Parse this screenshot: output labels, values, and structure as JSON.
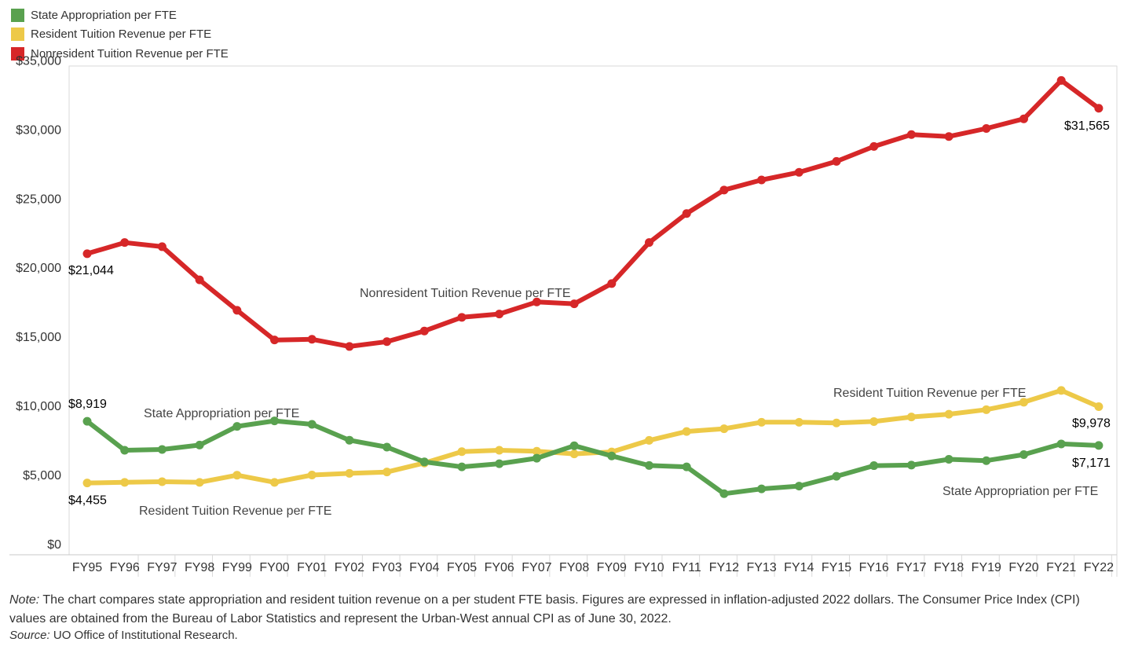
{
  "legend": [
    {
      "label": "State Appropriation per FTE",
      "color": "#59a14f"
    },
    {
      "label": "Resident Tuition Revenue per FTE",
      "color": "#edc948"
    },
    {
      "label": "Nonresident Tuition Revenue per FTE",
      "color": "#d62728"
    }
  ],
  "note": {
    "label": "Note:",
    "text": " The chart compares state appropriation and resident tuition revenue on a per student FTE basis. Figures are expressed in inflation-adjusted 2022 dollars. The Consumer Price Index (CPI) values are obtained from the Bureau of Labor Statistics and represent the Urban-West annual CPI as of June 30, 2022."
  },
  "source": {
    "label": "Source:",
    "text": " UO Office of Institutional Research."
  },
  "chart_data": {
    "type": "line",
    "categories": [
      "FY95",
      "FY96",
      "FY97",
      "FY98",
      "FY99",
      "FY00",
      "FY01",
      "FY02",
      "FY03",
      "FY04",
      "FY05",
      "FY06",
      "FY07",
      "FY08",
      "FY09",
      "FY10",
      "FY11",
      "FY12",
      "FY13",
      "FY14",
      "FY15",
      "FY16",
      "FY17",
      "FY18",
      "FY19",
      "FY20",
      "FY21",
      "FY22"
    ],
    "ylim": [
      0,
      35000
    ],
    "yticks": [
      0,
      5000,
      10000,
      15000,
      20000,
      25000,
      30000,
      35000
    ],
    "ytick_labels": [
      "$0",
      "$5,000",
      "$10,000",
      "$15,000",
      "$20,000",
      "$25,000",
      "$30,000",
      "$35,000"
    ],
    "grid": false,
    "legend_position": "top-left",
    "series": [
      {
        "name": "Nonresident Tuition Revenue per FTE",
        "color": "#d62728",
        "values": [
          21044,
          21850,
          21550,
          19150,
          16950,
          14800,
          14850,
          14330,
          14680,
          15450,
          16440,
          16680,
          17550,
          17420,
          18880,
          21850,
          23950,
          25650,
          26380,
          26930,
          27720,
          28800,
          29660,
          29520,
          30100,
          30800,
          33580,
          31565
        ]
      },
      {
        "name": "Resident Tuition Revenue per FTE",
        "color": "#edc948",
        "values": [
          4455,
          4500,
          4550,
          4500,
          5020,
          4500,
          5030,
          5150,
          5250,
          5900,
          6720,
          6820,
          6750,
          6560,
          6700,
          7540,
          8180,
          8380,
          8850,
          8850,
          8800,
          8900,
          9230,
          9430,
          9760,
          10300,
          11150,
          9978
        ]
      },
      {
        "name": "State Appropriation per FTE",
        "color": "#59a14f",
        "values": [
          8919,
          6820,
          6880,
          7200,
          8550,
          8950,
          8700,
          7550,
          7050,
          5980,
          5620,
          5850,
          6250,
          7150,
          6410,
          5720,
          5620,
          3680,
          4030,
          4230,
          4940,
          5710,
          5750,
          6170,
          6070,
          6510,
          7280,
          7171
        ]
      }
    ],
    "annotations": [
      {
        "text": "$21,044",
        "series": 0,
        "point": 0
      },
      {
        "text": "$31,565",
        "series": 0,
        "point": 27
      },
      {
        "text": "$4,455",
        "series": 1,
        "point": 0
      },
      {
        "text": "$9,978",
        "series": 1,
        "point": 27
      },
      {
        "text": "$8,919",
        "series": 2,
        "point": 0
      },
      {
        "text": "$7,171",
        "series": 2,
        "point": 27
      },
      {
        "text": "Nonresident Tuition Revenue per FTE",
        "series": 0,
        "point": 10
      },
      {
        "text": "Resident Tuition Revenue per FTE",
        "series": 1,
        "point": 23
      },
      {
        "text": "Resident Tuition Revenue per FTE",
        "series": 1,
        "point": 4
      },
      {
        "text": "State Appropriation per FTE",
        "series": 2,
        "point": 4
      },
      {
        "text": "State Appropriation per FTE",
        "series": 2,
        "point": 25
      }
    ]
  }
}
